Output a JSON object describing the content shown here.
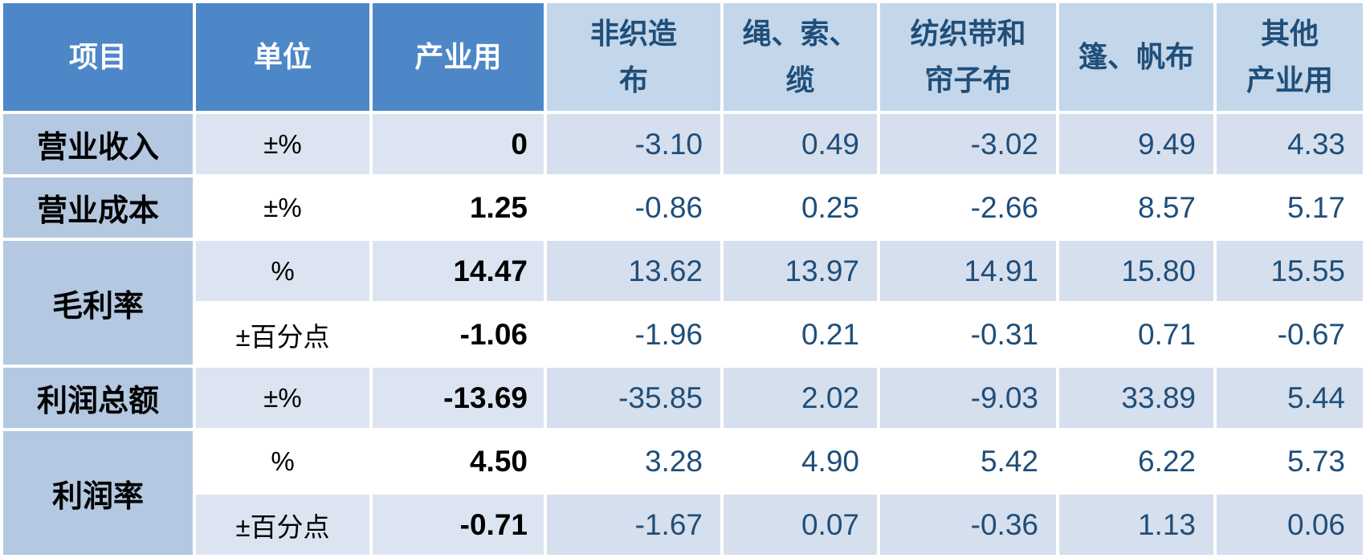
{
  "colors": {
    "header_primary_bg": "#4e87c8",
    "header_primary_text": "#ffffff",
    "header_secondary_bg": "#c3d6ea",
    "row_label_bg": "#b4c8e1",
    "band_light_unit_bg": "#dde4f1",
    "band_light_data_bg": "#d6dfee",
    "band_white_bg": "#ffffff",
    "data_text": "#1f4e79",
    "label_text": "#000000",
    "grid_gap": "#ffffff"
  },
  "chart_data": {
    "type": "table",
    "columns": [
      {
        "line1": "项目"
      },
      {
        "line1": "单位"
      },
      {
        "line1": "产业用"
      },
      {
        "line1": "非织造",
        "line2": "布"
      },
      {
        "line1": "绳、索、",
        "line2": "缆"
      },
      {
        "line1": "纺织带和",
        "line2": "帘子布"
      },
      {
        "line1": "篷、帆布"
      },
      {
        "line1": "其他",
        "line2": "产业用"
      }
    ],
    "column_names_flat": [
      "项目",
      "单位",
      "产业用",
      "非织造布",
      "绳、索、缆",
      "纺织带和帘子布",
      "篷、帆布",
      "其他产业用"
    ],
    "rows": [
      {
        "item": "营业收入",
        "unit": "±%",
        "industrial": "0",
        "values": [
          "-3.10",
          "0.49",
          "-3.02",
          "9.49",
          "4.33"
        ]
      },
      {
        "item": "营业成本",
        "unit": "±%",
        "industrial": "1.25",
        "values": [
          "-0.86",
          "0.25",
          "-2.66",
          "8.57",
          "5.17"
        ]
      },
      {
        "item": "毛利率",
        "unit": "%",
        "industrial": "14.47",
        "values": [
          "13.62",
          "13.97",
          "14.91",
          "15.80",
          "15.55"
        ]
      },
      {
        "item": "毛利率",
        "unit": "±百分点",
        "industrial": "-1.06",
        "values": [
          "-1.96",
          "0.21",
          "-0.31",
          "0.71",
          "-0.67"
        ]
      },
      {
        "item": "利润总额",
        "unit": "±%",
        "industrial": "-13.69",
        "values": [
          "-35.85",
          "2.02",
          "-9.03",
          "33.89",
          "5.44"
        ]
      },
      {
        "item": "利润率",
        "unit": "%",
        "industrial": "4.50",
        "values": [
          "3.28",
          "4.90",
          "5.42",
          "6.22",
          "5.73"
        ]
      },
      {
        "item": "利润率",
        "unit": "±百分点",
        "industrial": "-0.71",
        "values": [
          "-1.67",
          "0.07",
          "-0.36",
          "1.13",
          "0.06"
        ]
      }
    ]
  }
}
